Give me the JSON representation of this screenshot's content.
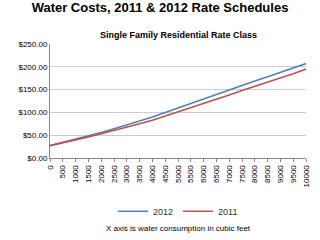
{
  "chart_data": {
    "type": "line",
    "title": "Water Costs, 2011 & 2012 Rate Schedules",
    "subtitle": "Single Family Residential Rate Class",
    "x_label": "X axis is water consumption in cubic feet",
    "x": [
      0,
      500,
      1000,
      1500,
      2000,
      2500,
      3000,
      3500,
      4000,
      4500,
      5000,
      5500,
      6000,
      6500,
      7000,
      7500,
      8000,
      8500,
      9000,
      9500,
      10000
    ],
    "series": [
      {
        "name": "2012",
        "color": "#4f81bd",
        "values": [
          27,
          34,
          41,
          48,
          56,
          64,
          72,
          81,
          90,
          100,
          110,
          120,
          130,
          140,
          150,
          159,
          169,
          178,
          188,
          197,
          207
        ]
      },
      {
        "name": "2011",
        "color": "#c0504d",
        "values": [
          27,
          33,
          39,
          46,
          53,
          60,
          67,
          75,
          83,
          92,
          101,
          110,
          120,
          129,
          138,
          148,
          157,
          166,
          176,
          185,
          195
        ]
      }
    ],
    "xlim": [
      0,
      10000
    ],
    "xticks": [
      0,
      500,
      1000,
      1500,
      2000,
      2500,
      3000,
      3500,
      4000,
      4500,
      5000,
      5500,
      6000,
      6500,
      7000,
      7500,
      8000,
      8500,
      9000,
      9500,
      10000
    ],
    "ylim": [
      0,
      250
    ],
    "yticks": [
      {
        "value": 0,
        "label": "$0.00"
      },
      {
        "value": 50,
        "label": "$50.00"
      },
      {
        "value": 100,
        "label": "$100.00"
      },
      {
        "value": 150,
        "label": "$150.00"
      },
      {
        "value": 200,
        "label": "$200.00"
      },
      {
        "value": 250,
        "label": "$250.00"
      }
    ],
    "grid": true,
    "legend": "bottom"
  }
}
